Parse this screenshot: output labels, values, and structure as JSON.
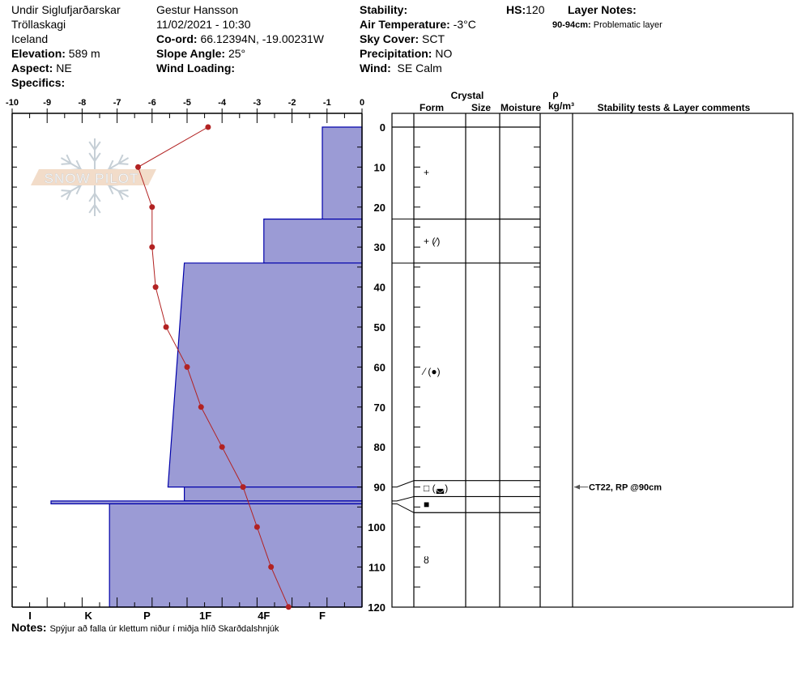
{
  "header": {
    "location": "Undir Siglufjarðarskar",
    "range": "Tröllaskagi",
    "country": "Iceland",
    "elevation_label": "Elevation:",
    "elevation": "589 m",
    "aspect_label": "Aspect:",
    "aspect": "NE",
    "specifics_label": "Specifics:",
    "observer": "Gestur Hansson",
    "datetime": "11/02/2021 - 10:30",
    "coord_label": "Co-ord:",
    "coord": "66.12394N, -19.00231W",
    "slope_label": "Slope Angle:",
    "slope": "25°",
    "wind_loading_label": "Wind Loading:",
    "stability_label": "Stability:",
    "air_temp_label": "Air Temperature:",
    "air_temp": "-3°C",
    "sky_label": "Sky Cover:",
    "sky": "SCT",
    "precip_label": "Precipitation:",
    "precip": "NO",
    "wind_label": "Wind:",
    "wind": "SE Calm",
    "hs_label": "HS:",
    "hs": "120",
    "layer_notes_label": "Layer Notes:",
    "layer_note_range": "90-94cm:",
    "layer_note_text": "Problematic layer"
  },
  "notes_label": "Notes:",
  "notes": "Spýjur að falla úr klettum niður í miðja hlíð Skarðdalshnjúk",
  "logo": "SNOW PILOT",
  "table_headers": {
    "crystal": "Crystal",
    "form": "Form",
    "size": "Size",
    "moisture": "Moisture",
    "rho": "ρ",
    "density_unit": "kg/m³",
    "comments": "Stability tests & Layer comments"
  },
  "colors": {
    "hardness_fill": "#9b9bd5",
    "hardness_stroke": "#0000aa",
    "temperature": "#b22222"
  },
  "chart_data": {
    "type": "line",
    "temperature_axis": {
      "ticks": [
        "-10",
        "-9",
        "-8",
        "-7",
        "-6",
        "-5",
        "-4",
        "-3",
        "-2",
        "-1",
        "0"
      ],
      "range": [
        -10,
        0
      ]
    },
    "depth_axis": {
      "ticks": [
        "0",
        "10",
        "20",
        "30",
        "40",
        "50",
        "60",
        "70",
        "80",
        "90",
        "100",
        "110",
        "120"
      ],
      "range": [
        0,
        120
      ]
    },
    "hardness_axis": {
      "ticks": [
        "I",
        "K",
        "P",
        "1F",
        "4F",
        "F"
      ]
    },
    "temperature_profile": {
      "depth": [
        0,
        10,
        20,
        30,
        40,
        50,
        60,
        70,
        80,
        90,
        100,
        110,
        120
      ],
      "temp": [
        -4.4,
        -6.4,
        -6.0,
        -6.0,
        -5.9,
        -5.6,
        -5.0,
        -4.6,
        -4.0,
        -3.4,
        -3.0,
        -2.6,
        -2.1
      ]
    },
    "hardness_layers": [
      {
        "top": 0,
        "bottom": 23,
        "hardness": "F"
      },
      {
        "top": 23,
        "bottom": 34,
        "hardness": "4F"
      },
      {
        "top": 34,
        "bottom": 90,
        "hardness": "1F+",
        "hardness_bottom": "P-"
      },
      {
        "top": 90,
        "bottom": 93.5,
        "hardness": "1F+"
      },
      {
        "top": 93.5,
        "bottom": 94.2,
        "hardness": "I-"
      },
      {
        "top": 94.2,
        "bottom": 120,
        "hardness": "K-"
      }
    ],
    "grain_layers": [
      {
        "top": 0,
        "bottom": 23,
        "form": "+"
      },
      {
        "top": 23,
        "bottom": 34,
        "form": "+ (⁄)"
      },
      {
        "top": 34,
        "bottom": 90,
        "form": "⁄ (●)"
      },
      {
        "top": 90,
        "bottom": 93.5,
        "form": "□ (◛)"
      },
      {
        "top": 93.5,
        "bottom": 94.2,
        "form": "■"
      },
      {
        "top": 94.2,
        "bottom": 120,
        "form": "ȣ"
      }
    ],
    "stability_tests": [
      {
        "depth": 90,
        "text": "CT22, RP @90cm"
      }
    ]
  }
}
